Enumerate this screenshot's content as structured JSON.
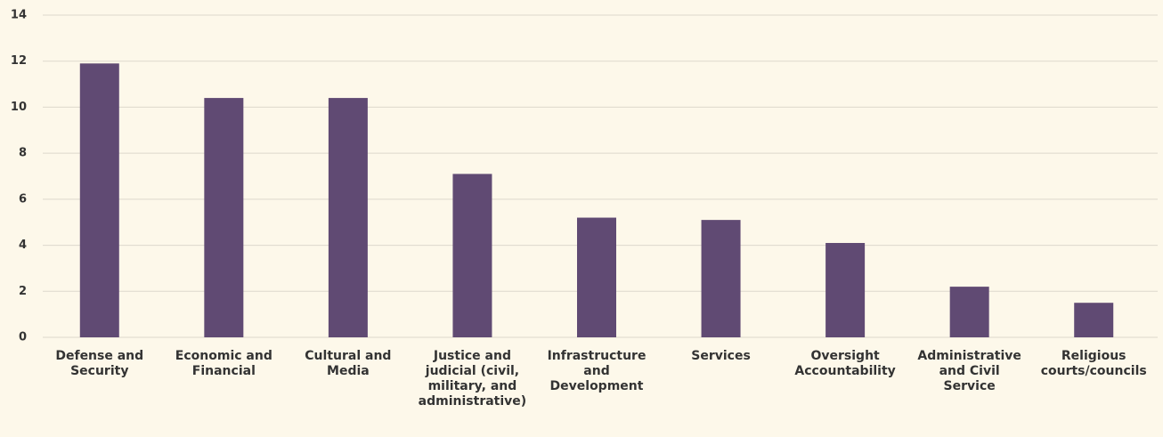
{
  "chart_data": {
    "type": "bar",
    "categories": [
      "Defense and Security",
      "Economic and Financial",
      "Cultural and Media",
      "Justice and judicial (civil, military, and administrative)",
      "Infrastructure and Development",
      "Services",
      "Oversight Accountability",
      "Administrative and Civil Service",
      "Religious courts/councils"
    ],
    "values": [
      11.9,
      10.4,
      10.4,
      7.1,
      5.2,
      5.1,
      4.1,
      2.2,
      1.5
    ],
    "color": "#604a73",
    "ylim": [
      0,
      14
    ],
    "yticks": [
      0,
      2,
      4,
      6,
      8,
      10,
      12,
      14
    ],
    "grid": true
  }
}
